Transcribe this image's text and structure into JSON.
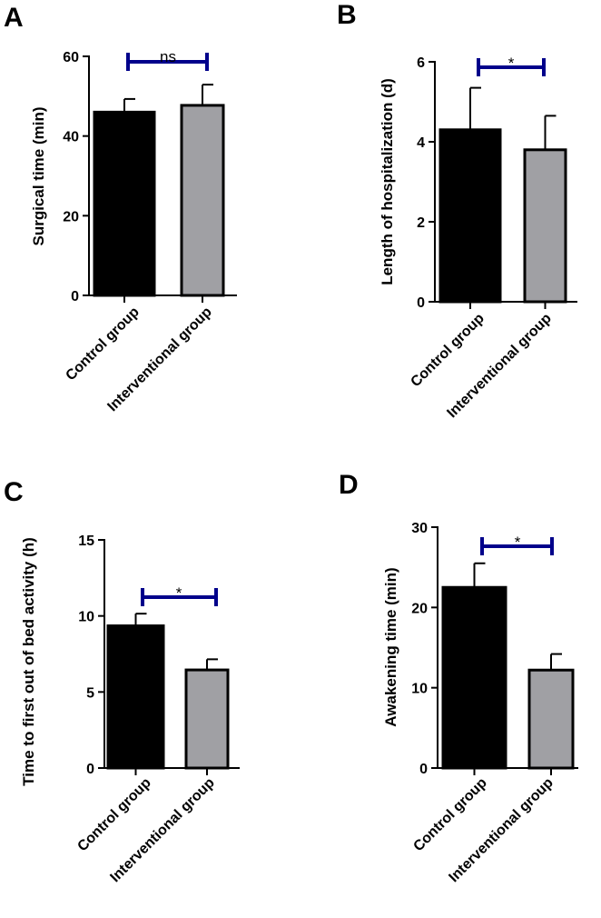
{
  "colors": {
    "control": "#000000",
    "interventional": "#a0a0a4",
    "bracket": "#00008b",
    "axis": "#000000"
  },
  "chart_data": [
    {
      "panel": "A",
      "type": "bar",
      "ylabel": "Surgical time (min)",
      "ylim": [
        0,
        60
      ],
      "yticks": [
        0,
        20,
        40,
        60
      ],
      "categories": [
        "Control group",
        "Interventional group"
      ],
      "values": [
        46,
        47.7
      ],
      "errors": [
        3.3,
        5.2
      ],
      "significance": "ns"
    },
    {
      "panel": "B",
      "type": "bar",
      "ylabel": "Length of hospitalization (d)",
      "ylim": [
        0,
        6
      ],
      "yticks": [
        0,
        2,
        4,
        6
      ],
      "categories": [
        "Control group",
        "Interventional group"
      ],
      "values": [
        4.3,
        3.8
      ],
      "errors": [
        1.05,
        0.85
      ],
      "significance": "*"
    },
    {
      "panel": "C",
      "type": "bar",
      "ylabel": "Time to first out of bed activity (h)",
      "ylim": [
        0,
        15
      ],
      "yticks": [
        0,
        5,
        10,
        15
      ],
      "categories": [
        "Control group",
        "Interventional group"
      ],
      "values": [
        9.35,
        6.45
      ],
      "errors": [
        0.8,
        0.7
      ],
      "significance": "*"
    },
    {
      "panel": "D",
      "type": "bar",
      "ylabel": "Awakening time (min)",
      "ylim": [
        0,
        30
      ],
      "yticks": [
        0,
        10,
        20,
        30
      ],
      "categories": [
        "Control group",
        "Interventional group"
      ],
      "values": [
        22.5,
        12.2
      ],
      "errors": [
        3.0,
        2.0
      ],
      "significance": "*"
    }
  ]
}
